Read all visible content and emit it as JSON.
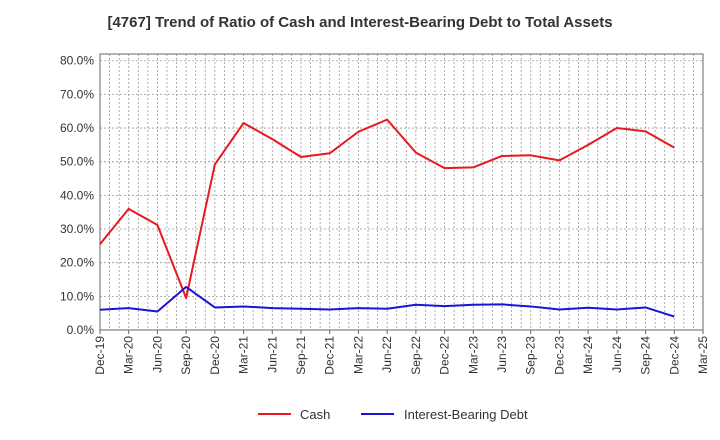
{
  "title": "[4767]  Trend of Ratio of Cash and Interest-Bearing Debt to Total Assets",
  "chart_data": {
    "type": "line",
    "title": "[4767]  Trend of Ratio of Cash and Interest-Bearing Debt to Total Assets",
    "xlabel": "",
    "ylabel": "",
    "x": [
      "Dec-19",
      "Mar-20",
      "Jun-20",
      "Sep-20",
      "Dec-20",
      "Mar-21",
      "Jun-21",
      "Sep-21",
      "Dec-21",
      "Mar-22",
      "Jun-22",
      "Sep-22",
      "Dec-22",
      "Mar-23",
      "Jun-23",
      "Sep-23",
      "Dec-23",
      "Mar-24",
      "Jun-24",
      "Sep-24",
      "Dec-24",
      "Mar-25"
    ],
    "y_ticks": [
      "0.0%",
      "10.0%",
      "20.0%",
      "30.0%",
      "40.0%",
      "50.0%",
      "60.0%",
      "70.0%",
      "80.0%"
    ],
    "ylim": [
      0,
      82
    ],
    "grid": true,
    "legend_position": "bottom",
    "series": [
      {
        "name": "Cash",
        "color": "#e8191e",
        "values": [
          25.5,
          36.0,
          31.2,
          9.5,
          49.2,
          61.5,
          56.7,
          51.4,
          52.5,
          58.9,
          62.5,
          52.7,
          48.1,
          48.3,
          51.7,
          51.9,
          50.4,
          55.0,
          60.0,
          59.0,
          54.2,
          null
        ]
      },
      {
        "name": "Interest-Bearing Debt",
        "color": "#1a14d6",
        "values": [
          6.0,
          6.5,
          5.5,
          12.8,
          6.7,
          7.0,
          6.5,
          6.3,
          6.1,
          6.5,
          6.3,
          7.5,
          7.1,
          7.5,
          7.6,
          7.0,
          6.1,
          6.6,
          6.1,
          6.7,
          4.0,
          null
        ]
      }
    ]
  }
}
